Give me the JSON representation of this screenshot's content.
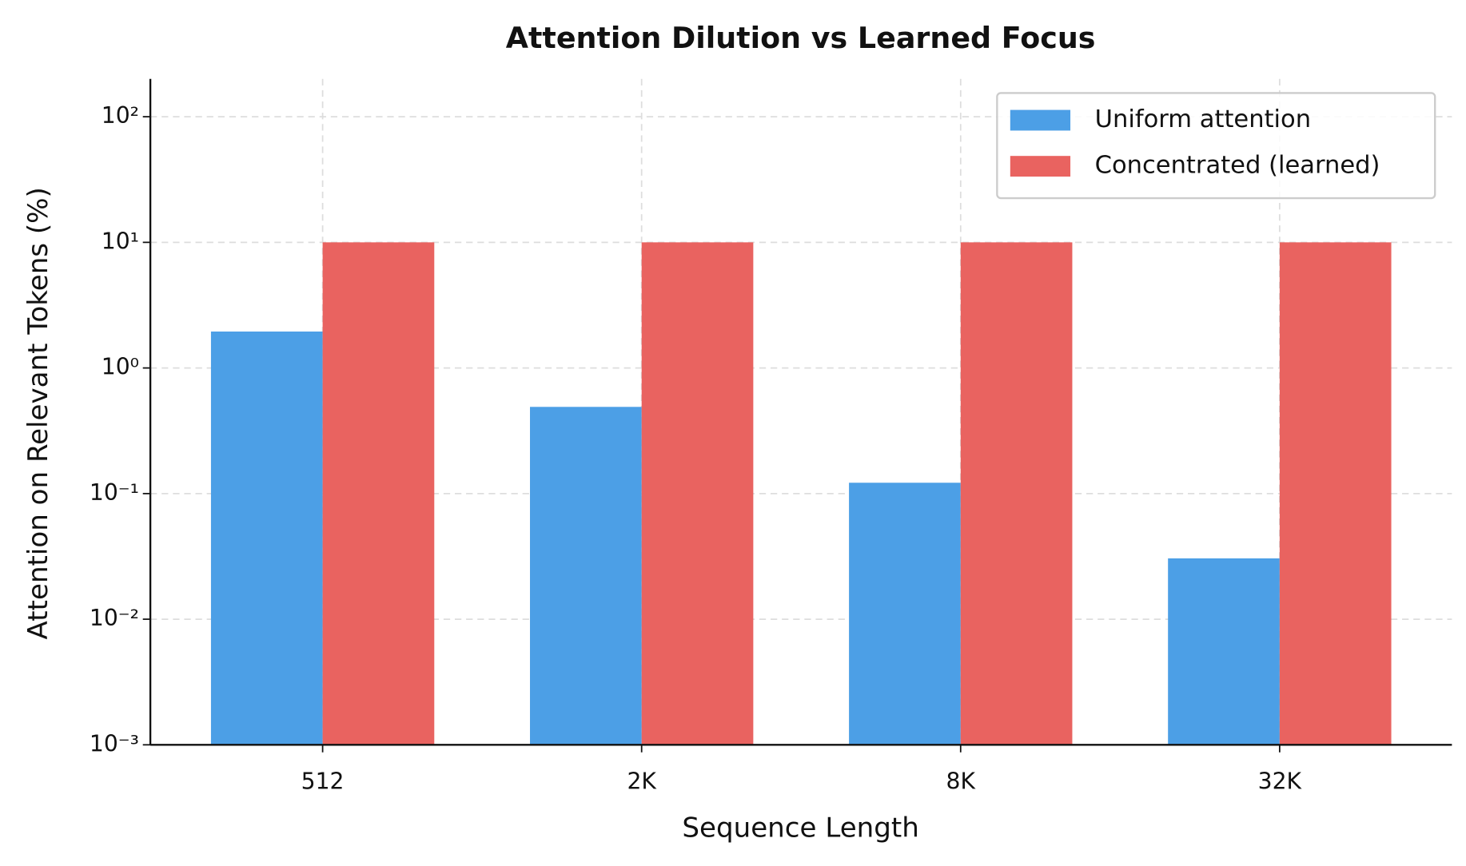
{
  "chart_data": {
    "type": "bar",
    "title": "Attention Dilution vs Learned Focus",
    "x_label": "Sequence Length",
    "y_label": "Attention on Relevant Tokens (%)",
    "categories": [
      "512",
      "2K",
      "8K",
      "32K"
    ],
    "series": [
      {
        "name": "Uniform attention",
        "color": "#4c9fe6",
        "values": [
          1.95,
          0.49,
          0.122,
          0.0305
        ]
      },
      {
        "name": "Concentrated (learned)",
        "color": "#e96360",
        "values": [
          10,
          10,
          10,
          10
        ]
      }
    ],
    "y_scale": "log",
    "ylim": [
      0.001,
      200
    ],
    "yticks": [
      {
        "value": 0.001,
        "label": "10⁻³"
      },
      {
        "value": 0.01,
        "label": "10⁻²"
      },
      {
        "value": 0.1,
        "label": "10⁻¹"
      },
      {
        "value": 1,
        "label": "10⁰"
      },
      {
        "value": 10,
        "label": "10¹"
      },
      {
        "value": 100,
        "label": "10²"
      }
    ],
    "grid": true,
    "legend": "upper right"
  }
}
